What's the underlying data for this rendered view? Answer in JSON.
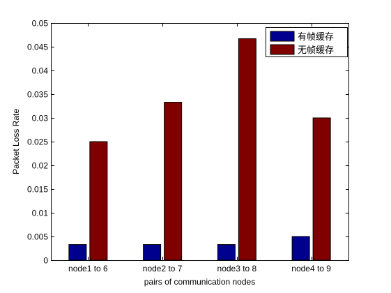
{
  "chart_data": {
    "type": "bar",
    "title": "",
    "xlabel": "pairs of communication nodes",
    "ylabel": "Packet Loss Rate",
    "categories": [
      "node1 to 6",
      "node2 to 7",
      "node3 to 8",
      "node4 to 9"
    ],
    "series": [
      {
        "name": "有帧缓存",
        "color": "#00008f",
        "values": [
          0.0033,
          0.0033,
          0.0033,
          0.005
        ]
      },
      {
        "name": "无帧缓存",
        "color": "#800000",
        "values": [
          0.025,
          0.0333,
          0.0467,
          0.03
        ]
      }
    ],
    "ylim": [
      0,
      0.05
    ],
    "yticks": [
      0,
      0.005,
      0.01,
      0.015,
      0.02,
      0.025,
      0.03,
      0.035,
      0.04,
      0.045,
      0.05
    ],
    "ytick_labels": [
      "0",
      "0.005",
      "0.01",
      "0.015",
      "0.02",
      "0.025",
      "0.03",
      "0.035",
      "0.04",
      "0.045",
      "0.05"
    ],
    "grid": false,
    "legend_position": "top-right"
  }
}
